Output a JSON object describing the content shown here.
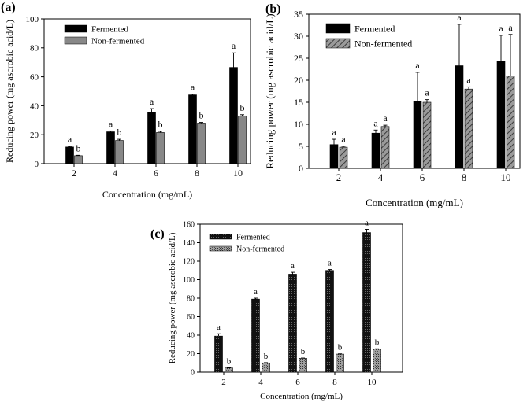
{
  "chart_data": [
    {
      "panel_label": "(a)",
      "type": "bar",
      "title": "",
      "xlabel": "Concentration (mg/mL)",
      "ylabel": "Reducing power (mg ascrobic acid/L)",
      "ylim": [
        0,
        100
      ],
      "yticks": [
        0,
        20,
        40,
        60,
        80,
        100
      ],
      "categories": [
        "2",
        "4",
        "6",
        "8",
        "10"
      ],
      "legend_position": "top-left",
      "series": [
        {
          "name": "Fermented",
          "values": [
            11.5,
            22,
            35.5,
            47.5,
            66.5
          ],
          "errors": [
            0.5,
            0.6,
            2.5,
            0.5,
            10
          ],
          "letters": [
            "a",
            "a",
            "a",
            "a",
            "a"
          ],
          "color": "#000000",
          "pattern": "solid"
        },
        {
          "name": "Non-fermented",
          "values": [
            5.5,
            16,
            21.5,
            28,
            33
          ],
          "errors": [
            0.3,
            0.8,
            0.8,
            0.5,
            0.8
          ],
          "letters": [
            "b",
            "b",
            "b",
            "b",
            "b"
          ],
          "color": "#888888",
          "pattern": "solid"
        }
      ]
    },
    {
      "panel_label": "(b)",
      "type": "bar",
      "title": "",
      "xlabel": "Concentration (mg/mL)",
      "ylabel": "Reducing power (mg ascrobic acid/L)",
      "ylim": [
        0,
        35
      ],
      "yticks": [
        0,
        5,
        10,
        15,
        20,
        25,
        30,
        35
      ],
      "categories": [
        "2",
        "4",
        "6",
        "8",
        "10"
      ],
      "legend_position": "top-left",
      "series": [
        {
          "name": "Fermented",
          "values": [
            5.4,
            8,
            15.3,
            23.3,
            24.4
          ],
          "errors": [
            1.2,
            0.7,
            6.5,
            9.4,
            5.8
          ],
          "letters": [
            "a",
            "a",
            "a",
            "a",
            "a"
          ],
          "color": "#000000",
          "pattern": "solid"
        },
        {
          "name": "Non-fermented",
          "values": [
            4.8,
            9.5,
            15,
            18,
            21
          ],
          "errors": [
            0.2,
            0.3,
            0.6,
            0.5,
            9.4
          ],
          "letters": [
            "a",
            "a",
            "a",
            "a",
            "a"
          ],
          "color": "#888888",
          "pattern": "hatch"
        }
      ]
    },
    {
      "panel_label": "(c)",
      "type": "bar",
      "title": "",
      "xlabel": "Concentration (mg/mL)",
      "ylabel": "Reducing power (mg ascrobic acid/L)",
      "ylim": [
        0,
        160
      ],
      "yticks": [
        0,
        20,
        40,
        60,
        80,
        100,
        120,
        140,
        160
      ],
      "categories": [
        "2",
        "4",
        "6",
        "8",
        "10"
      ],
      "legend_position": "top-left",
      "series": [
        {
          "name": "Fermented",
          "values": [
            39,
            79,
            106,
            110,
            151
          ],
          "errors": [
            2.5,
            1,
            2,
            1,
            3.5
          ],
          "letters": [
            "a",
            "a",
            "a",
            "a",
            "a"
          ],
          "color": "#111111",
          "pattern": "dense"
        },
        {
          "name": "Non-fermented",
          "values": [
            4.5,
            10,
            15,
            19.5,
            25
          ],
          "errors": [
            0.3,
            0.3,
            0.3,
            0.3,
            0.3
          ],
          "letters": [
            "b",
            "b",
            "b",
            "b",
            "b"
          ],
          "color": "#888888",
          "pattern": "dots"
        }
      ]
    }
  ]
}
